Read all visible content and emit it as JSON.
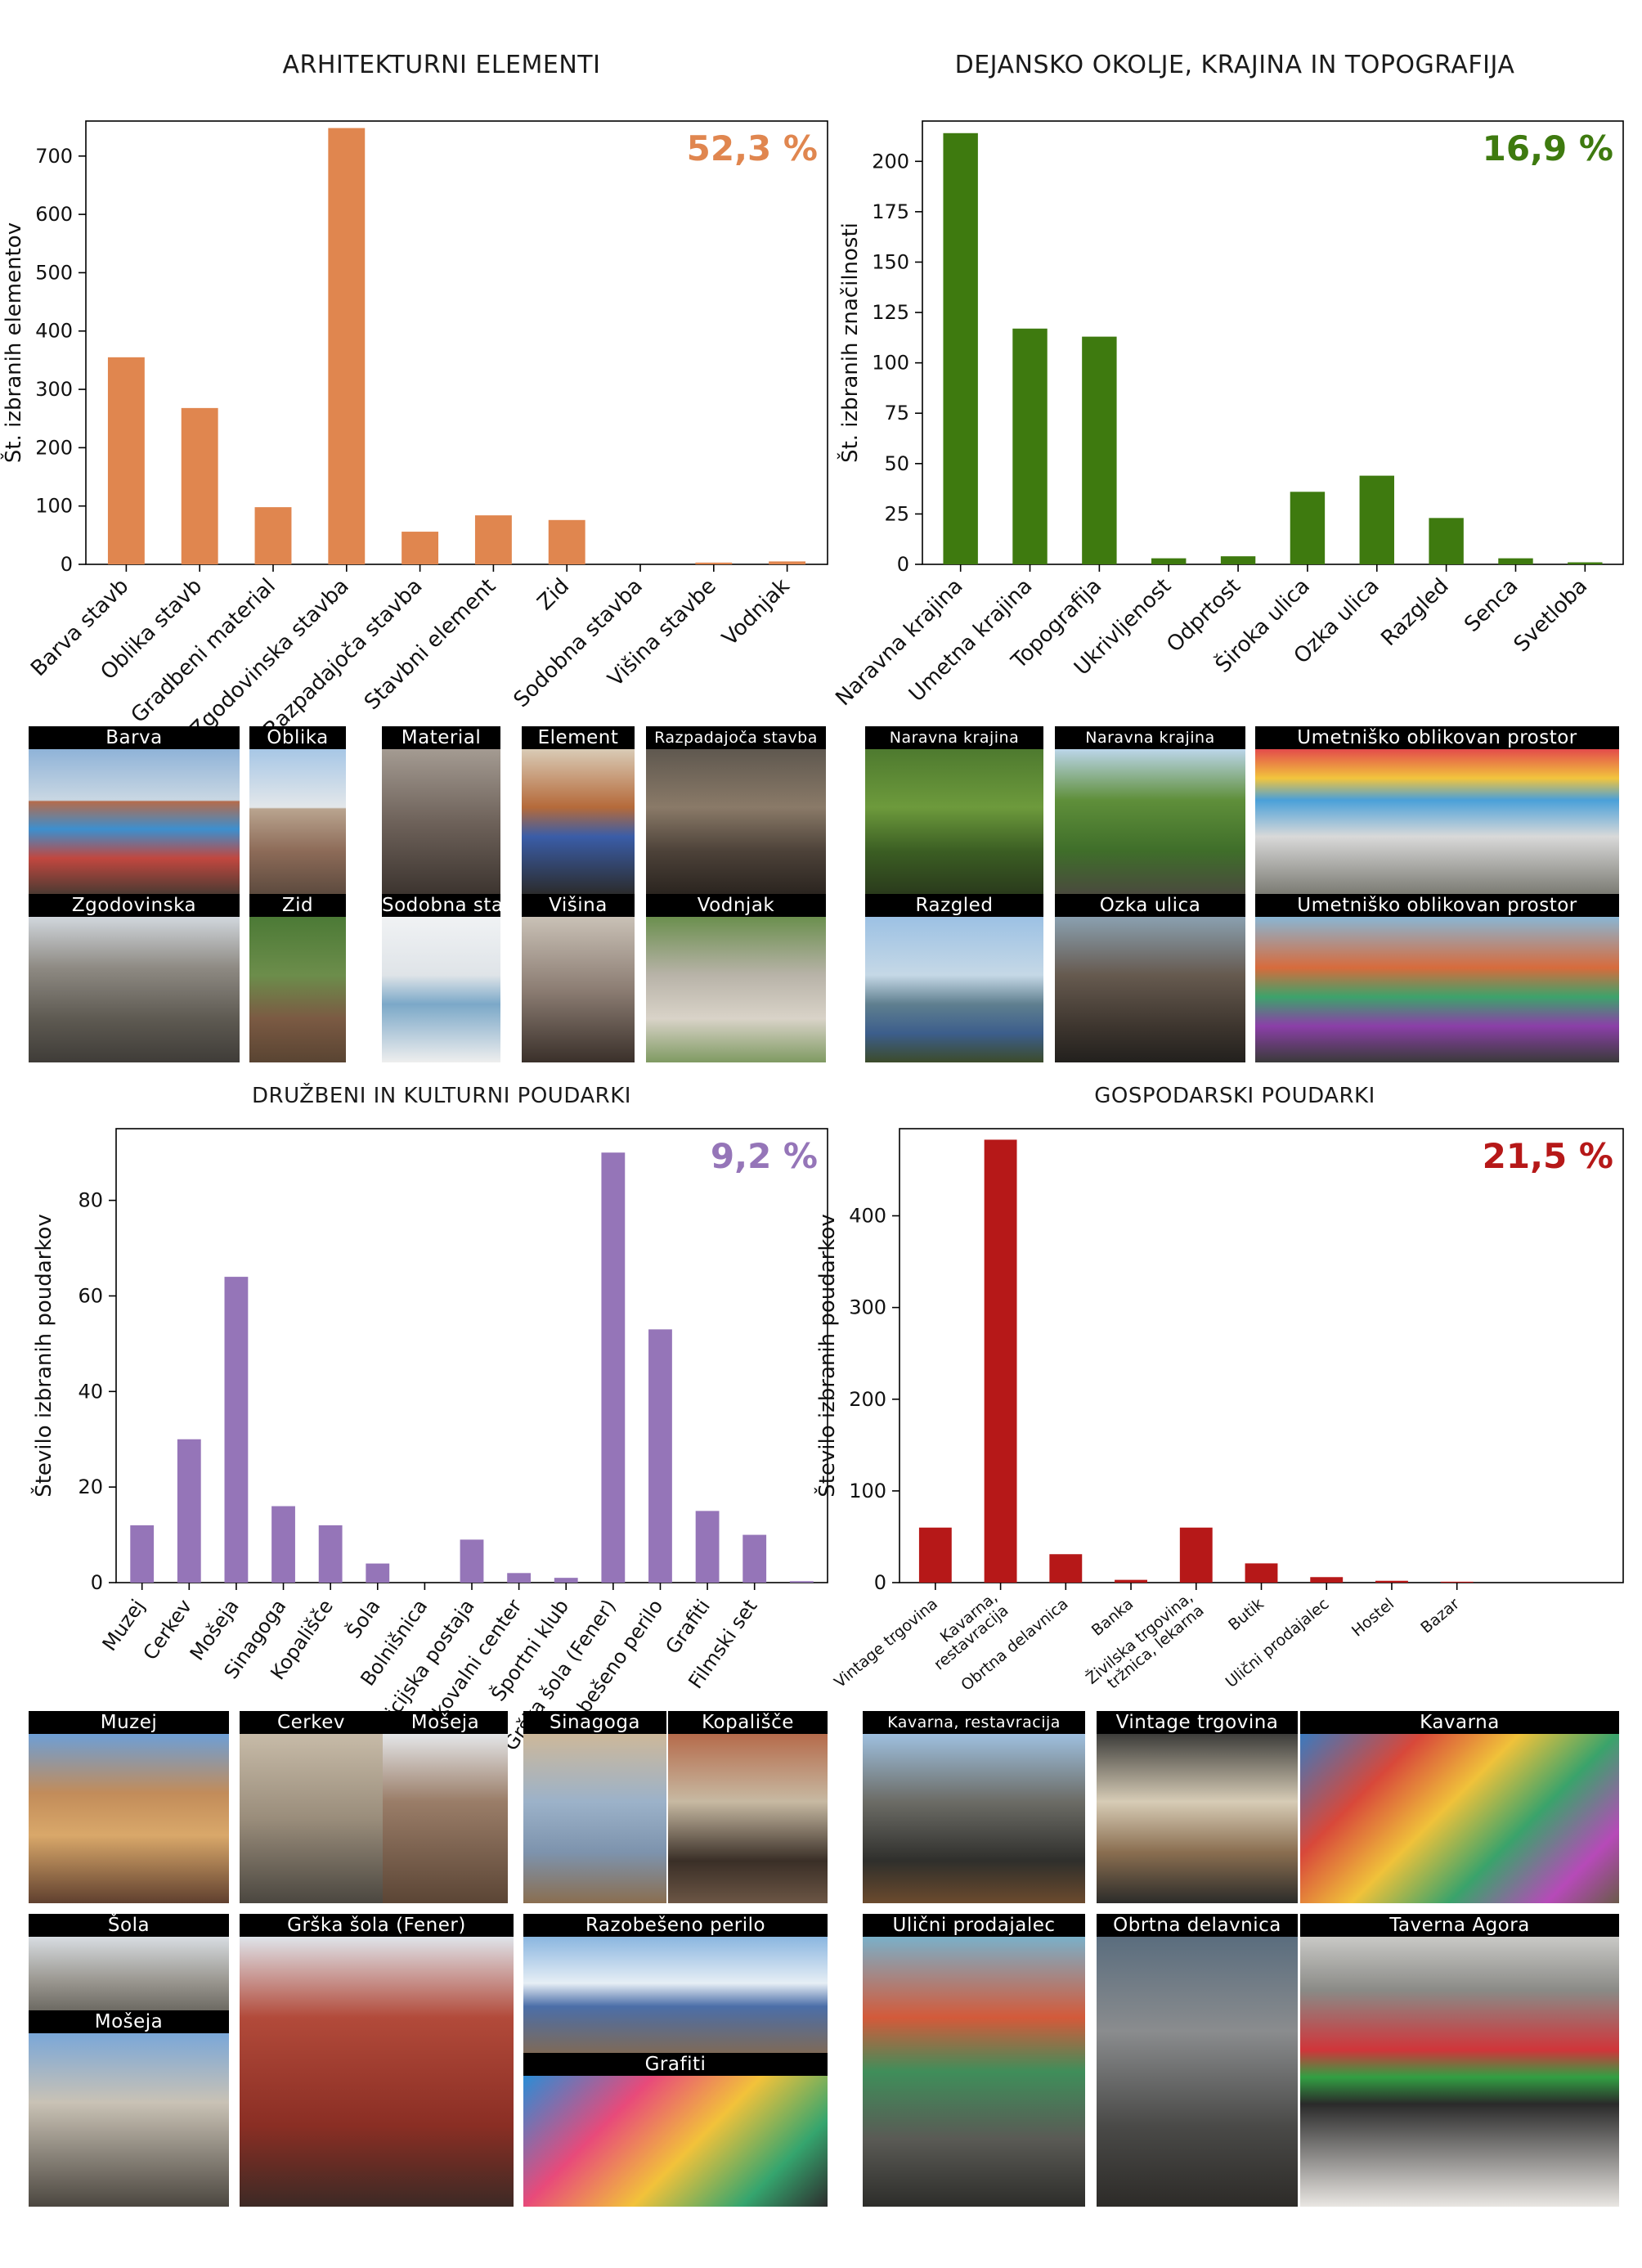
{
  "panels": [
    {
      "title": "ARHITEKTURNI ELEMENTI",
      "percent": "52,3 %",
      "color": "#E0864F",
      "chart_data": {
        "type": "bar",
        "categories": [
          "Barva stavb",
          "Oblika stavb",
          "Gradbeni material",
          "Zgodovinska stavba",
          "Razpadajoča stavba",
          "Stavbni element",
          "Zid",
          "Sodobna stavba",
          "Višina stavbe",
          "Vodnjak"
        ],
        "values": [
          355,
          268,
          98,
          748,
          56,
          84,
          76,
          0,
          3,
          5
        ],
        "ylabel": "Št. izbranih elementov",
        "ylim": [
          0,
          760
        ],
        "yticks": [
          0,
          100,
          200,
          300,
          400,
          500,
          600,
          700
        ]
      }
    },
    {
      "title": "DEJANSKO OKOLJE, KRAJINA IN TOPOGRAFIJA",
      "percent": "16,9 %",
      "color": "#3E7A0F",
      "chart_data": {
        "type": "bar",
        "categories": [
          "Naravna krajina",
          "Umetna krajina",
          "Topografija",
          "Ukrivljenost",
          "Odprtost",
          "Široka ulica",
          "Ozka ulica",
          "Razgled",
          "Senca",
          "Svetloba"
        ],
        "values": [
          214,
          117,
          113,
          3,
          4,
          36,
          44,
          23,
          3,
          1
        ],
        "ylabel": "Št. izbranih značilnosti",
        "ylim": [
          0,
          220
        ],
        "yticks": [
          0,
          25,
          50,
          75,
          100,
          125,
          150,
          175,
          200
        ]
      }
    },
    {
      "title": "DRUŽBENI IN KULTURNI POUDARKI",
      "percent": "9,2 %",
      "color": "#9575B8",
      "chart_data": {
        "type": "bar",
        "categories": [
          "Muzej",
          "Cerkev",
          "Mošeja",
          "Sinagoga",
          "Kopališče",
          "Šola",
          "Bolnišnica",
          "Policijska postaja",
          "Raziskovalni center",
          "Športni klub",
          "Grška šola (Fener)",
          "Razobešeno perilo",
          "Grafiti",
          "Filmski set",
          ""
        ],
        "values": [
          12,
          30,
          64,
          16,
          12,
          4,
          0,
          9,
          2,
          1,
          90,
          53,
          15,
          10,
          0.3
        ],
        "ylabel": "Število izbranih poudarkov",
        "ylim": [
          0,
          95
        ],
        "yticks": [
          0,
          20,
          40,
          60,
          80
        ]
      }
    },
    {
      "title": "GOSPODARSKI POUDARKI",
      "percent": "21,5 %",
      "color": "#B61818",
      "chart_data": {
        "type": "bar",
        "categories": [
          "Vintage trgovina",
          "Kavarna,\nrestavracija",
          "Obrtna delavnica",
          "Banka",
          "Živilska trgovina,\ntržnica, lekarna",
          "Butik",
          "Ulični prodajalec",
          "Hostel",
          "Bazar",
          "",
          ""
        ],
        "values": [
          60,
          483,
          31,
          3,
          60,
          21,
          6,
          2,
          1,
          0,
          0
        ],
        "ylabel": "Število izbranih poudarkov",
        "ylim": [
          0,
          495
        ],
        "yticks": [
          0,
          100,
          200,
          300,
          400
        ]
      }
    }
  ],
  "photos": {
    "arch": [
      "Barva",
      "Oblika",
      "Material",
      "Element",
      "Razpadajoča stavba",
      "Zgodovinska",
      "Zid",
      "Sodobna stavba",
      "Višina",
      "Vodnjak"
    ],
    "env": [
      "Naravna krajina",
      "Naravna krajina",
      "Umetniško oblikovan prostor",
      "Razgled",
      "Ozka ulica",
      "Umetniško oblikovan prostor"
    ],
    "soc": [
      "Muzej",
      "Cerkev",
      "Mošeja",
      "Sinagoga",
      "Kopališče",
      "Šola",
      "Mošeja",
      "Grška šola (Fener)",
      "Razobešeno perilo",
      "Grafiti"
    ],
    "eco": [
      "Kavarna, restavracija",
      "Vintage trgovina",
      "Kavarna",
      "Ulični prodajalec",
      "Obrtna delavnica",
      "Taverna Agora"
    ]
  }
}
